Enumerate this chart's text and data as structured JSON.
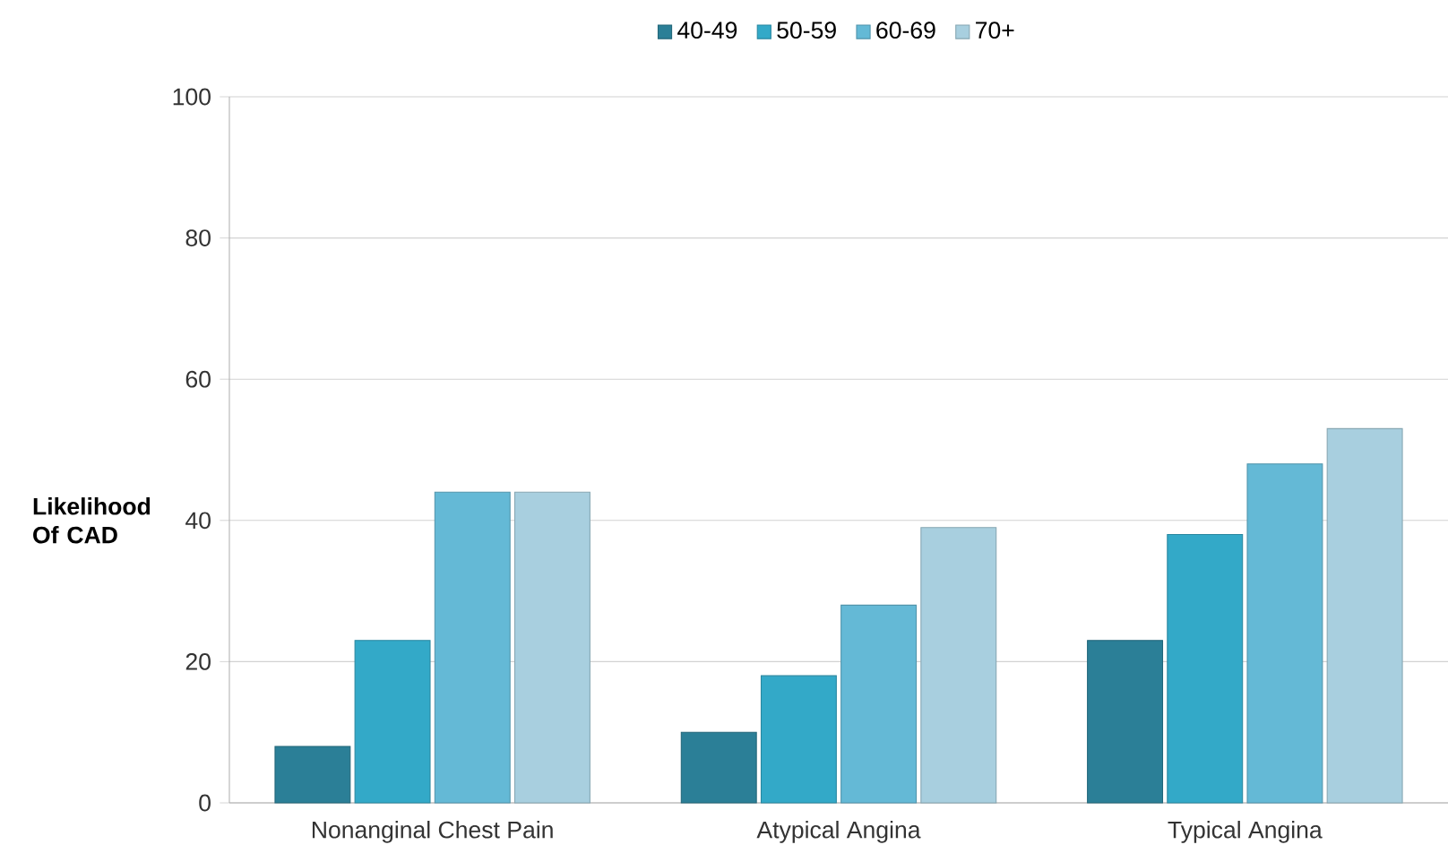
{
  "chart_data": {
    "type": "bar",
    "ylabel": "Likelihood Of CAD",
    "categories": [
      "Nonanginal Chest Pain",
      "Atypical Angina",
      "Typical Angina"
    ],
    "series": [
      {
        "name": "40-49",
        "color": "#2b7f97",
        "values": [
          8,
          10,
          23
        ]
      },
      {
        "name": "50-59",
        "color": "#33a9c8",
        "values": [
          23,
          18,
          38
        ]
      },
      {
        "name": "60-69",
        "color": "#64b9d6",
        "values": [
          44,
          28,
          48
        ]
      },
      {
        "name": "70+",
        "color": "#a8cfdf",
        "values": [
          44,
          39,
          53
        ]
      }
    ],
    "ylim": [
      0,
      100
    ],
    "yticks": [
      0,
      20,
      40,
      60,
      80,
      100
    ],
    "grid": "y",
    "legend": "top"
  }
}
